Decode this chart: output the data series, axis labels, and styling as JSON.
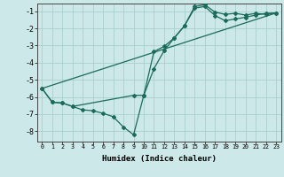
{
  "title": "",
  "xlabel": "Humidex (Indice chaleur)",
  "background_color": "#cce8e8",
  "grid_color": "#aacece",
  "line_color": "#1a6b5a",
  "xlim": [
    -0.5,
    23.5
  ],
  "ylim": [
    -8.6,
    -0.55
  ],
  "xticks": [
    0,
    1,
    2,
    3,
    4,
    5,
    6,
    7,
    8,
    9,
    10,
    11,
    12,
    13,
    14,
    15,
    16,
    17,
    18,
    19,
    20,
    21,
    22,
    23
  ],
  "yticks": [
    -1,
    -2,
    -3,
    -4,
    -5,
    -6,
    -7,
    -8
  ],
  "line1_x": [
    0,
    1,
    2,
    3,
    4,
    5,
    6,
    7,
    8,
    9,
    10,
    11,
    12,
    13,
    14,
    15,
    16,
    17,
    18,
    19,
    20,
    21,
    22,
    23
  ],
  "line1_y": [
    -5.5,
    -6.3,
    -6.35,
    -6.55,
    -6.75,
    -6.8,
    -6.95,
    -7.15,
    -7.75,
    -8.2,
    -5.9,
    -4.35,
    -3.3,
    -2.55,
    -1.85,
    -0.72,
    -0.62,
    -1.05,
    -1.18,
    -1.12,
    -1.22,
    -1.12,
    -1.18,
    -1.1
  ],
  "line2_x": [
    0,
    1,
    2,
    3,
    9,
    10,
    11,
    12,
    13,
    14,
    15,
    16,
    17,
    18,
    19,
    20,
    21,
    22,
    23
  ],
  "line2_y": [
    -5.5,
    -6.3,
    -6.35,
    -6.55,
    -5.9,
    -5.9,
    -3.35,
    -3.05,
    -2.55,
    -1.85,
    -0.82,
    -0.72,
    -1.25,
    -1.55,
    -1.45,
    -1.35,
    -1.22,
    -1.12,
    -1.1
  ],
  "line3_x": [
    0,
    23
  ],
  "line3_y": [
    -5.5,
    -1.1
  ]
}
